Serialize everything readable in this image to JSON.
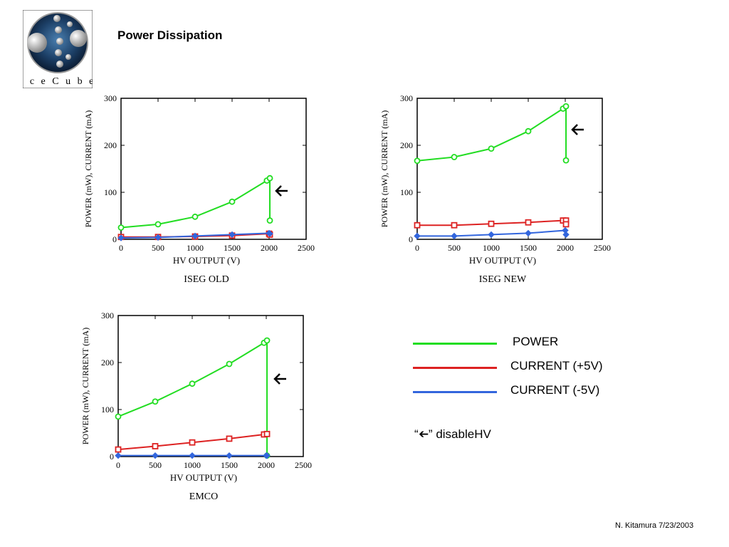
{
  "page": {
    "title": "Power Dissipation",
    "logo_text": "IceCube",
    "footer": "N. Kitamura 7/23/2003"
  },
  "legend": {
    "items": [
      {
        "label": "POWER",
        "color": "#22dd22"
      },
      {
        "label": "CURRENT (+5V)",
        "color": "#dd2222"
      },
      {
        "label": "CURRENT (-5V)",
        "color": "#3366dd"
      }
    ],
    "note_arrow": "➔",
    "note_open_quote": "“",
    "note_close_quote": "”",
    "note_text": "disableHV"
  },
  "chart_data": [
    {
      "type": "line",
      "title": "ISEG OLD",
      "xlabel": "HV OUTPUT (V)",
      "ylabel": "POWER (mW), CURRENT (mA)",
      "xlim": [
        0,
        2500
      ],
      "ylim": [
        0,
        300
      ],
      "xticks": [
        0,
        500,
        1000,
        1500,
        2000,
        2500
      ],
      "yticks": [
        0,
        100,
        200,
        300
      ],
      "grid": false,
      "annotation": "➔",
      "series": [
        {
          "color": "#22dd22",
          "marker": "circle",
          "points": [
            [
              0,
              25
            ],
            [
              500,
              32
            ],
            [
              1000,
              48
            ],
            [
              1500,
              80
            ],
            [
              1970,
              125
            ],
            [
              2010,
              130
            ],
            [
              2010,
              40
            ]
          ]
        },
        {
          "color": "#dd2222",
          "marker": "square",
          "points": [
            [
              0,
              5
            ],
            [
              500,
              5
            ],
            [
              1000,
              6
            ],
            [
              1500,
              8
            ],
            [
              2000,
              12
            ],
            [
              2010,
              10
            ]
          ]
        },
        {
          "color": "#3366dd",
          "marker": "diamond",
          "points": [
            [
              0,
              3
            ],
            [
              500,
              4
            ],
            [
              1000,
              7
            ],
            [
              1500,
              10
            ],
            [
              2000,
              13
            ],
            [
              2010,
              12
            ]
          ]
        }
      ]
    },
    {
      "type": "line",
      "title": "ISEG NEW",
      "xlabel": "HV OUTPUT (V)",
      "ylabel": "POWER (mW), CURRENT (mA)",
      "xlim": [
        0,
        2500
      ],
      "ylim": [
        0,
        300
      ],
      "xticks": [
        0,
        500,
        1000,
        1500,
        2000,
        2500
      ],
      "yticks": [
        0,
        100,
        200,
        300
      ],
      "grid": false,
      "annotation": "➔",
      "series": [
        {
          "color": "#22dd22",
          "marker": "circle",
          "points": [
            [
              0,
              167
            ],
            [
              500,
              175
            ],
            [
              1000,
              193
            ],
            [
              1500,
              230
            ],
            [
              1970,
              278
            ],
            [
              2010,
              283
            ],
            [
              2010,
              168
            ]
          ]
        },
        {
          "color": "#dd2222",
          "marker": "square",
          "points": [
            [
              0,
              30
            ],
            [
              500,
              30
            ],
            [
              1000,
              33
            ],
            [
              1500,
              36
            ],
            [
              1970,
              40
            ],
            [
              2010,
              40
            ],
            [
              2010,
              32
            ]
          ]
        },
        {
          "color": "#3366dd",
          "marker": "diamond",
          "points": [
            [
              0,
              7
            ],
            [
              500,
              7
            ],
            [
              1000,
              10
            ],
            [
              1500,
              13
            ],
            [
              2000,
              19
            ],
            [
              2010,
              10
            ]
          ]
        }
      ]
    },
    {
      "type": "line",
      "title": "EMCO",
      "xlabel": "HV OUTPUT (V)",
      "ylabel": "POWER (mW), CURRENT (mA)",
      "xlim": [
        0,
        2500
      ],
      "ylim": [
        0,
        300
      ],
      "xticks": [
        0,
        500,
        1000,
        1500,
        2000,
        2500
      ],
      "yticks": [
        0,
        100,
        200,
        300
      ],
      "grid": false,
      "annotation": "➔",
      "series": [
        {
          "color": "#22dd22",
          "marker": "circle",
          "points": [
            [
              0,
              85
            ],
            [
              500,
              117
            ],
            [
              1000,
              155
            ],
            [
              1500,
              197
            ],
            [
              1970,
              242
            ],
            [
              2010,
              247
            ],
            [
              2010,
              2
            ]
          ]
        },
        {
          "color": "#dd2222",
          "marker": "square",
          "points": [
            [
              0,
              15
            ],
            [
              500,
              22
            ],
            [
              1000,
              30
            ],
            [
              1500,
              38
            ],
            [
              1970,
              47
            ],
            [
              2010,
              48
            ]
          ]
        },
        {
          "color": "#3366dd",
          "marker": "diamond",
          "points": [
            [
              0,
              2
            ],
            [
              500,
              2
            ],
            [
              1000,
              2
            ],
            [
              1500,
              2
            ],
            [
              2000,
              2
            ],
            [
              2010,
              2
            ]
          ]
        }
      ]
    }
  ]
}
